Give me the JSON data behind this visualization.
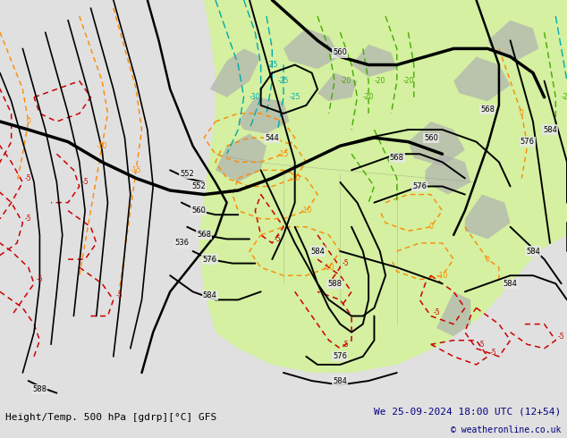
{
  "title_left": "Height/Temp. 500 hPa [gdrp][°C] GFS",
  "title_right": "We 25-09-2024 18:00 UTC (12+54)",
  "copyright": "© weatheronline.co.uk",
  "bg_color": "#e0e0e0",
  "map_bg_color": "#e8e8e8",
  "green_light": "#d4f0a0",
  "green_med": "#c0e880",
  "gray_land": "#c0c0c0",
  "z500_color": "#000000",
  "temp_neg_color": "#cc0000",
  "temp_pos_color": "#ff8800",
  "temp_green_color": "#88bb00",
  "slp_cyan_color": "#00aaaa",
  "z850_green_color": "#44aa00"
}
